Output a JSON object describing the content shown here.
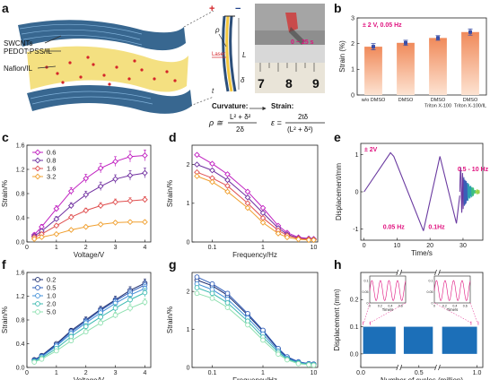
{
  "panels": {
    "a": {
      "label": "a",
      "layer_labels": [
        "SWCNTs",
        "PEDOT:PSS/IL",
        "Nafion/IL"
      ],
      "schematic_symbols": {
        "plus": "+",
        "minus": "−",
        "rho": "ρ",
        "L": "L",
        "delta": "δ",
        "t": "t",
        "laser": "Laser"
      },
      "photo_label": "0 ~ 25 s",
      "ruler_numbers": [
        "7",
        "8",
        "9"
      ],
      "curvature_title": "Curvature:",
      "curvature_lhs": "ρ ≅",
      "curvature_num": "L² + δ²",
      "curvature_den": "2δ",
      "strain_title": "Strain:",
      "strain_lhs": "ε =",
      "strain_num": "2tδ",
      "strain_den": "(L² + δ²)"
    },
    "b": {
      "label": "b"
    },
    "c": {
      "label": "c"
    },
    "d": {
      "label": "d"
    },
    "e": {
      "label": "e"
    },
    "f": {
      "label": "f"
    },
    "g": {
      "label": "g"
    },
    "h": {
      "label": "h"
    }
  },
  "chart_data": [
    {
      "id": "b",
      "type": "bar",
      "annotation": "± 2 V, 0.05 Hz",
      "categories": [
        "w/o DMSO",
        "DMSO",
        "DMSO Triton X-100",
        "DMSO Triton X-100/IL"
      ],
      "category_lines": [
        [
          "w/o DMSO"
        ],
        [
          "DMSO"
        ],
        [
          "DMSO",
          "Triton X-100"
        ],
        [
          "DMSO",
          "Triton X-100/IL"
        ]
      ],
      "values": [
        1.88,
        2.03,
        2.22,
        2.45
      ],
      "errors": [
        0.12,
        0.1,
        0.09,
        0.12
      ],
      "ylabel": "Strain (%)",
      "ylim": [
        0,
        3
      ],
      "yticks": [
        0,
        1,
        2,
        3
      ],
      "bar_color_top": "#f08a5a",
      "bar_color_bottom": "#fde3d2",
      "annotation_color": "#e0127f"
    },
    {
      "id": "c",
      "type": "line",
      "xlabel": "Voltage/V",
      "ylabel": "Strain/%",
      "xlim": [
        0,
        4.2
      ],
      "ylim": [
        0,
        1.6
      ],
      "xticks": [
        0,
        1,
        2,
        3,
        4
      ],
      "yticks": [
        0.0,
        0.4,
        0.8,
        1.2,
        1.6
      ],
      "ytick_labels": [
        "0.0",
        "0.4",
        "0.8",
        "1.2",
        "1.6"
      ],
      "legend_position": "top-left",
      "x": [
        0.25,
        0.5,
        1.0,
        1.5,
        2.0,
        2.5,
        3.0,
        3.5,
        4.0
      ],
      "series": [
        {
          "name": "0.6",
          "color": "#c020c0",
          "values": [
            0.12,
            0.25,
            0.55,
            0.84,
            1.05,
            1.22,
            1.33,
            1.41,
            1.43
          ],
          "err": [
            0.03,
            0.04,
            0.05,
            0.06,
            0.07,
            0.08,
            0.08,
            0.09,
            0.09
          ]
        },
        {
          "name": "0.8",
          "color": "#7030a0",
          "values": [
            0.1,
            0.18,
            0.38,
            0.6,
            0.78,
            0.92,
            1.04,
            1.1,
            1.14
          ],
          "err": [
            0.03,
            0.03,
            0.04,
            0.05,
            0.06,
            0.07,
            0.07,
            0.08,
            0.08
          ]
        },
        {
          "name": "1.6",
          "color": "#e05050",
          "values": [
            0.08,
            0.13,
            0.27,
            0.41,
            0.52,
            0.6,
            0.66,
            0.68,
            0.7
          ],
          "err": [
            0.02,
            0.03,
            0.03,
            0.04,
            0.04,
            0.05,
            0.05,
            0.05,
            0.05
          ]
        },
        {
          "name": "3.2",
          "color": "#f0a030",
          "values": [
            0.05,
            0.08,
            0.13,
            0.2,
            0.25,
            0.29,
            0.32,
            0.33,
            0.33
          ],
          "err": [
            0.02,
            0.02,
            0.02,
            0.02,
            0.03,
            0.03,
            0.03,
            0.03,
            0.03
          ]
        }
      ]
    },
    {
      "id": "d",
      "type": "line",
      "xscale": "log",
      "xlabel": "Frequency/Hz",
      "ylabel": "Strain/%",
      "xlim": [
        0.04,
        12
      ],
      "ylim": [
        0,
        2.5
      ],
      "xticks": [
        0.1,
        1,
        10
      ],
      "xtick_labels": [
        "0.1",
        "1",
        "10"
      ],
      "yticks": [
        0,
        1,
        2
      ],
      "x": [
        0.05,
        0.1,
        0.2,
        0.5,
        1,
        2,
        3,
        5,
        8,
        10
      ],
      "series": [
        {
          "name": "0.6",
          "color": "#c020c0",
          "values": [
            2.25,
            2.02,
            1.75,
            1.3,
            0.88,
            0.42,
            0.24,
            0.12,
            0.09,
            0.08
          ]
        },
        {
          "name": "0.8",
          "color": "#7030a0",
          "values": [
            2.0,
            1.85,
            1.6,
            1.15,
            0.75,
            0.36,
            0.2,
            0.1,
            0.08,
            0.07
          ]
        },
        {
          "name": "1.6",
          "color": "#e05050",
          "values": [
            1.8,
            1.65,
            1.45,
            1.0,
            0.62,
            0.3,
            0.17,
            0.09,
            0.07,
            0.06
          ]
        },
        {
          "name": "3.2",
          "color": "#f0a030",
          "values": [
            1.7,
            1.55,
            1.3,
            0.88,
            0.5,
            0.22,
            0.12,
            0.07,
            0.05,
            0.05
          ]
        }
      ]
    },
    {
      "id": "e",
      "type": "line",
      "xlabel": "Time/s",
      "ylabel": "Displacement/mm",
      "xlim": [
        -1,
        36
      ],
      "ylim": [
        -1.3,
        1.3
      ],
      "xticks": [
        0,
        10,
        20,
        30
      ],
      "yticks": [
        -1,
        0,
        1
      ],
      "annotations": [
        "± 2V",
        "0.05 Hz",
        "0.1Hz",
        "0.5 - 10 Hz"
      ],
      "annotation_color": "#e0127f",
      "line_color": "#6a3aa0",
      "segments": [
        {
          "label": "0.05 Hz",
          "x": [
            0,
            8,
            9,
            18
          ],
          "y": [
            0,
            1.05,
            0.95,
            -1.05
          ]
        },
        {
          "label": "0.1Hz",
          "x": [
            18,
            23,
            28,
            29
          ],
          "y": [
            -1.05,
            0.95,
            -0.85,
            -0.1
          ]
        }
      ]
    },
    {
      "id": "f",
      "type": "line",
      "xlabel": "Voltage/V",
      "ylabel": "Strain/%",
      "xlim": [
        0,
        4.2
      ],
      "ylim": [
        0,
        1.6
      ],
      "xticks": [
        0,
        1,
        2,
        3,
        4
      ],
      "yticks": [
        0.0,
        0.4,
        0.8,
        1.2,
        1.6
      ],
      "ytick_labels": [
        "0.0",
        "0.4",
        "0.8",
        "1.2",
        "1.6"
      ],
      "legend_position": "top-left",
      "x": [
        0.25,
        0.5,
        1.0,
        1.5,
        2.0,
        2.5,
        3.0,
        3.5,
        4.0
      ],
      "series": [
        {
          "name": "0.2",
          "color": "#1a2a6c",
          "values": [
            0.13,
            0.2,
            0.4,
            0.62,
            0.8,
            0.98,
            1.14,
            1.3,
            1.42
          ],
          "err": [
            0.02,
            0.03,
            0.03,
            0.04,
            0.05,
            0.05,
            0.06,
            0.06,
            0.07
          ]
        },
        {
          "name": "0.5",
          "color": "#2e5cb8",
          "values": [
            0.12,
            0.19,
            0.38,
            0.6,
            0.78,
            0.96,
            1.12,
            1.27,
            1.39
          ],
          "err": [
            0.02,
            0.03,
            0.03,
            0.04,
            0.05,
            0.05,
            0.06,
            0.06,
            0.07
          ]
        },
        {
          "name": "1.0",
          "color": "#3f8fd8",
          "values": [
            0.11,
            0.18,
            0.36,
            0.57,
            0.75,
            0.92,
            1.08,
            1.22,
            1.33
          ],
          "err": [
            0.02,
            0.03,
            0.03,
            0.04,
            0.05,
            0.05,
            0.06,
            0.06,
            0.07
          ]
        },
        {
          "name": "2.0",
          "color": "#3cbab0",
          "values": [
            0.1,
            0.16,
            0.32,
            0.52,
            0.69,
            0.85,
            1.0,
            1.14,
            1.26
          ],
          "err": [
            0.02,
            0.03,
            0.03,
            0.04,
            0.05,
            0.05,
            0.06,
            0.06,
            0.07
          ]
        },
        {
          "name": "5.0",
          "color": "#8ee0b0",
          "values": [
            0.09,
            0.14,
            0.28,
            0.45,
            0.6,
            0.75,
            0.88,
            1.0,
            1.1
          ],
          "err": [
            0.02,
            0.02,
            0.03,
            0.04,
            0.04,
            0.05,
            0.05,
            0.06,
            0.06
          ]
        }
      ]
    },
    {
      "id": "g",
      "type": "line",
      "xscale": "log",
      "xlabel": "Frequency/Hz",
      "ylabel": "Strain/%",
      "xlim": [
        0.04,
        12
      ],
      "ylim": [
        0,
        2.5
      ],
      "xticks": [
        0.1,
        1,
        10
      ],
      "xtick_labels": [
        "0.1",
        "1",
        "10"
      ],
      "yticks": [
        0,
        1,
        2
      ],
      "x": [
        0.05,
        0.1,
        0.2,
        0.5,
        1,
        2,
        3,
        5,
        8,
        10
      ],
      "series": [
        {
          "name": "0.2",
          "color": "#1a2a6c",
          "values": [
            2.3,
            2.15,
            1.9,
            1.38,
            0.95,
            0.48,
            0.26,
            0.14,
            0.1,
            0.09
          ]
        },
        {
          "name": "0.5",
          "color": "#2e5cb8",
          "values": [
            2.38,
            2.2,
            1.95,
            1.42,
            0.98,
            0.5,
            0.28,
            0.15,
            0.1,
            0.09
          ]
        },
        {
          "name": "1.0",
          "color": "#3f8fd8",
          "values": [
            2.2,
            2.05,
            1.8,
            1.3,
            0.88,
            0.44,
            0.24,
            0.13,
            0.09,
            0.08
          ]
        },
        {
          "name": "2.0",
          "color": "#3cbab0",
          "values": [
            2.1,
            1.95,
            1.7,
            1.22,
            0.8,
            0.4,
            0.22,
            0.12,
            0.08,
            0.07
          ]
        },
        {
          "name": "5.0",
          "color": "#8ee0b0",
          "values": [
            1.95,
            1.82,
            1.58,
            1.12,
            0.72,
            0.35,
            0.2,
            0.1,
            0.07,
            0.06
          ]
        }
      ]
    },
    {
      "id": "h",
      "type": "area",
      "xlabel": "Number of cycles (million)",
      "ylabel": "Displacement (mm)",
      "xlim": [
        0,
        1.05
      ],
      "ylim": [
        -0.05,
        0.3
      ],
      "xticks": [
        0.0,
        0.5,
        1.0
      ],
      "xtick_labels": [
        "0.0",
        "0.5",
        "1.0"
      ],
      "yticks": [
        0.0,
        0.1,
        0.2
      ],
      "ytick_labels": [
        "0.0",
        "0.1",
        "0.2"
      ],
      "fill_color": "#1c6fb8",
      "band_range": [
        0.0,
        0.1
      ],
      "blocks": [
        [
          0.02,
          0.3
        ],
        [
          0.37,
          0.62
        ],
        [
          0.7,
          1.0
        ]
      ],
      "insets": [
        {
          "xlabel": "Time/s",
          "xticks": [
            0.0,
            0.2,
            0.4,
            0.6
          ],
          "yticks": [
            0.0,
            0.05,
            0.1
          ],
          "ylim": [
            0,
            0.12
          ],
          "xlim": [
            0,
            0.7
          ],
          "line_color": "#e0127f"
        },
        {
          "xlabel": "Time/s",
          "xticks": [
            0.0,
            0.2,
            0.4,
            0.6
          ],
          "yticks": [
            0.0,
            0.05,
            0.1
          ],
          "ylim": [
            0,
            0.12
          ],
          "xlim": [
            0,
            0.7
          ],
          "line_color": "#e0127f"
        }
      ]
    }
  ]
}
